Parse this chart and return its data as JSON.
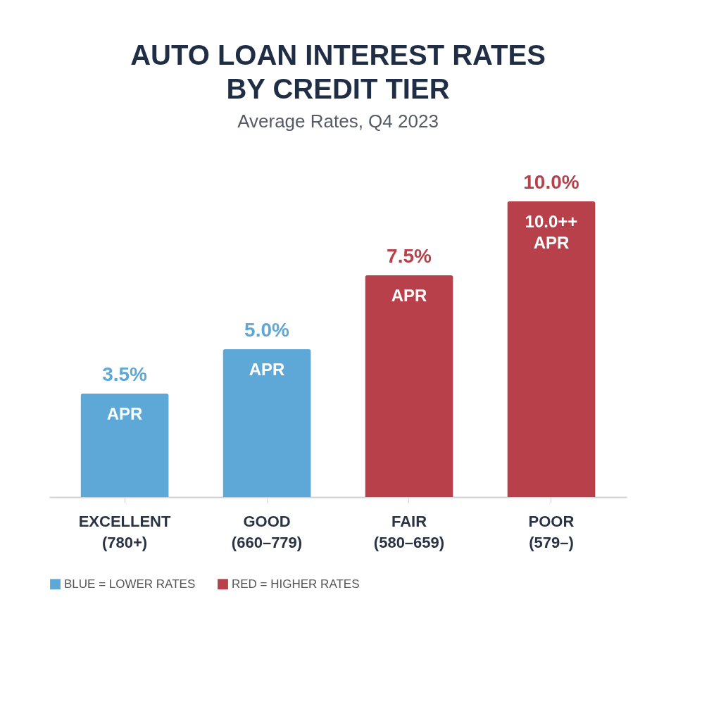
{
  "chart_data": {
    "type": "bar",
    "title": "AUTO LOAN INTEREST RATES\nBY CREDIT TIER",
    "subtitle": "Average Rates, Q4 2023",
    "categories": [
      "EXCELLENT\n(780+)",
      "GOOD\n(660–779)",
      "FAIR\n(580–659)",
      "POOR\n(579–)"
    ],
    "series": [
      {
        "name": "BLUE = LOWER RATES",
        "color": "#5ea8d8",
        "values": [
          3.5,
          5.0,
          null,
          null
        ],
        "value_labels": [
          "3.5%",
          "5.0%",
          null,
          null
        ]
      },
      {
        "name": "RED = HIGHER RATES",
        "color": "#b8404a",
        "values": [
          null,
          null,
          7.5,
          10.0
        ],
        "value_labels": [
          null,
          null,
          "7.5%",
          "10.0%"
        ]
      }
    ],
    "annotations": [
      {
        "text": "APR",
        "x": "EXCELLENT\n(780+)",
        "y": 3.5
      },
      {
        "text": "APR",
        "x": "GOOD\n(660–779)",
        "y": 5.0
      },
      {
        "text": "APR",
        "x": "FAIR\n(580–659)",
        "y": 7.5
      },
      {
        "text": "10.0++\nAPR",
        "x": "POOR\n(579–)",
        "y": 10.0
      }
    ],
    "legend": "bottom"
  }
}
